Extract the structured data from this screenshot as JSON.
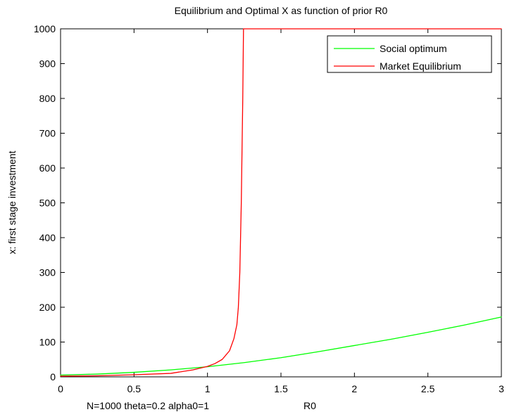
{
  "chart_data": {
    "type": "line",
    "title": "Equilibrium and Optimal X as function of prior R0",
    "xlabel": "R0",
    "ylabel": "x: first stage investment",
    "note": "N=1000  theta=0.2  alpha0=1",
    "xlim": [
      0,
      3
    ],
    "ylim": [
      0,
      1000
    ],
    "x_ticks": [
      0,
      0.5,
      1,
      1.5,
      2,
      2.5,
      3
    ],
    "x_tick_labels": [
      "0",
      "0.5",
      "1",
      "1.5",
      "2",
      "2.5",
      "3"
    ],
    "y_ticks": [
      0,
      100,
      200,
      300,
      400,
      500,
      600,
      700,
      800,
      900,
      1000
    ],
    "y_tick_labels": [
      "0",
      "100",
      "200",
      "300",
      "400",
      "500",
      "600",
      "700",
      "800",
      "900",
      "1000"
    ],
    "grid": false,
    "legend_position": "top-right",
    "series": [
      {
        "name": "Social optimum",
        "color": "#00ff00",
        "points": [
          [
            0,
            5
          ],
          [
            0.25,
            8
          ],
          [
            0.5,
            13
          ],
          [
            0.75,
            20
          ],
          [
            1,
            29
          ],
          [
            1.25,
            41
          ],
          [
            1.5,
            55
          ],
          [
            1.75,
            72
          ],
          [
            2,
            90
          ],
          [
            2.25,
            108
          ],
          [
            2.5,
            128
          ],
          [
            2.75,
            149
          ],
          [
            3,
            172
          ]
        ]
      },
      {
        "name": "Market Equilibrium",
        "color": "#ff0000",
        "points": [
          [
            0,
            2
          ],
          [
            0.25,
            3
          ],
          [
            0.5,
            6
          ],
          [
            0.75,
            10
          ],
          [
            0.9,
            20
          ],
          [
            1,
            30
          ],
          [
            1.05,
            38
          ],
          [
            1.1,
            50
          ],
          [
            1.15,
            75
          ],
          [
            1.18,
            110
          ],
          [
            1.2,
            150
          ],
          [
            1.21,
            200
          ],
          [
            1.22,
            300
          ],
          [
            1.225,
            400
          ],
          [
            1.23,
            500
          ],
          [
            1.235,
            650
          ],
          [
            1.24,
            800
          ],
          [
            1.245,
            1000
          ],
          [
            1.3,
            1000
          ],
          [
            2,
            1000
          ],
          [
            3,
            1000
          ]
        ]
      }
    ]
  }
}
